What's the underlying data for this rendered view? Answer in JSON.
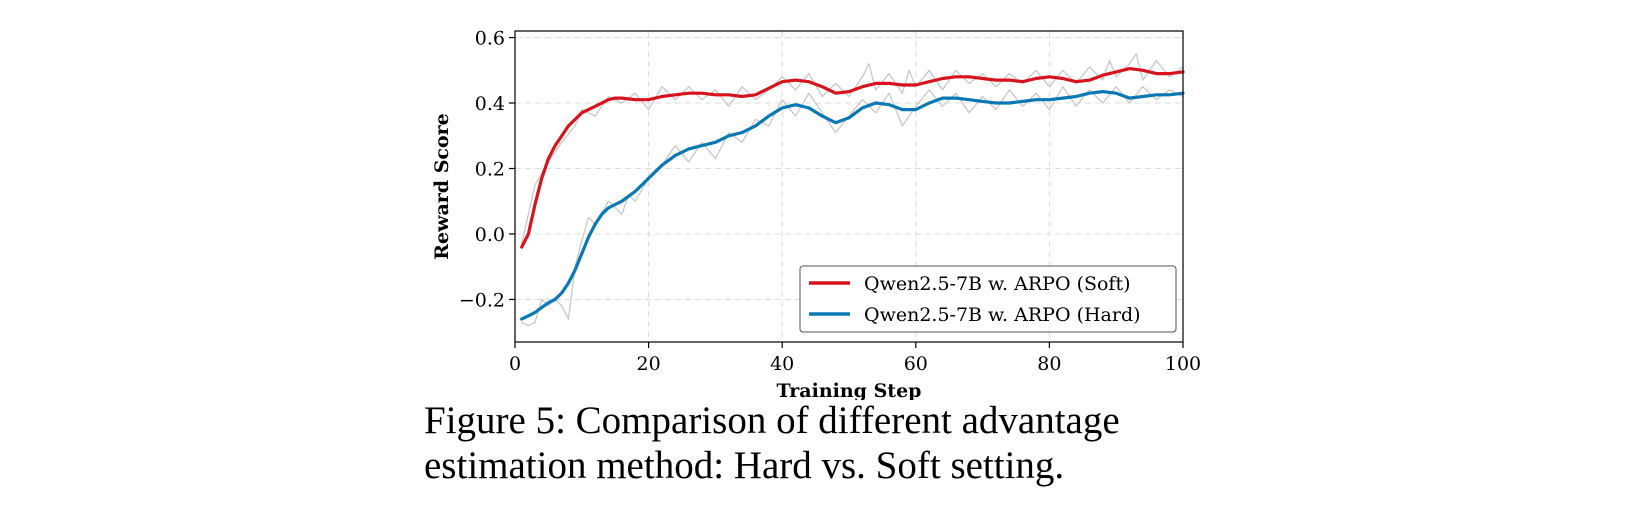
{
  "caption": "Figure 5: Comparison of different advantage estimation method: Hard vs. Soft setting.",
  "chart_data": {
    "type": "line",
    "title": "",
    "xlabel": "Training Step",
    "ylabel": "Reward Score",
    "xlim": [
      0,
      100
    ],
    "ylim": [
      -0.33,
      0.62
    ],
    "xticks": [
      0,
      20,
      40,
      60,
      80,
      100
    ],
    "xtick_labels": [
      "0",
      "20",
      "40",
      "60",
      "80",
      "100"
    ],
    "yticks": [
      -0.2,
      0.0,
      0.2,
      0.4,
      0.6
    ],
    "ytick_labels": [
      "−0.2",
      "0.0",
      "0.2",
      "0.4",
      "0.6"
    ],
    "grid": true,
    "legend_position": "lower-right",
    "series": [
      {
        "name": "Qwen2.5-7B w. ARPO (Soft)",
        "color": "#d7141e",
        "x": [
          1,
          2,
          3,
          4,
          5,
          6,
          7,
          8,
          9,
          10,
          12,
          14,
          15,
          16,
          18,
          20,
          22,
          24,
          26,
          28,
          30,
          32,
          34,
          36,
          38,
          40,
          42,
          44,
          46,
          48,
          50,
          52,
          54,
          56,
          58,
          60,
          62,
          64,
          66,
          68,
          70,
          72,
          74,
          76,
          78,
          80,
          82,
          84,
          86,
          88,
          90,
          92,
          94,
          96,
          98,
          100
        ],
        "y": [
          -0.04,
          0.0,
          0.09,
          0.17,
          0.23,
          0.27,
          0.3,
          0.33,
          0.35,
          0.37,
          0.39,
          0.41,
          0.415,
          0.415,
          0.41,
          0.41,
          0.42,
          0.425,
          0.43,
          0.43,
          0.425,
          0.425,
          0.42,
          0.425,
          0.445,
          0.465,
          0.47,
          0.465,
          0.45,
          0.43,
          0.435,
          0.45,
          0.46,
          0.46,
          0.455,
          0.455,
          0.465,
          0.475,
          0.48,
          0.48,
          0.475,
          0.47,
          0.47,
          0.465,
          0.475,
          0.48,
          0.475,
          0.465,
          0.47,
          0.485,
          0.495,
          0.505,
          0.5,
          0.49,
          0.49,
          0.495
        ]
      },
      {
        "name": "Qwen2.5-7B w. ARPO (Hard)",
        "color": "#0a78b4",
        "x": [
          1,
          2,
          3,
          4,
          5,
          6,
          7,
          8,
          9,
          10,
          11,
          12,
          13,
          14,
          15,
          16,
          18,
          20,
          22,
          24,
          26,
          28,
          30,
          32,
          34,
          36,
          38,
          40,
          42,
          44,
          46,
          48,
          50,
          52,
          54,
          56,
          58,
          60,
          62,
          64,
          66,
          68,
          70,
          72,
          74,
          76,
          78,
          80,
          82,
          84,
          86,
          88,
          90,
          92,
          94,
          96,
          98,
          100
        ],
        "y": [
          -0.26,
          -0.25,
          -0.24,
          -0.225,
          -0.21,
          -0.2,
          -0.18,
          -0.15,
          -0.11,
          -0.06,
          -0.01,
          0.03,
          0.06,
          0.08,
          0.09,
          0.1,
          0.13,
          0.17,
          0.21,
          0.24,
          0.26,
          0.27,
          0.28,
          0.3,
          0.31,
          0.33,
          0.36,
          0.385,
          0.395,
          0.385,
          0.36,
          0.34,
          0.355,
          0.385,
          0.4,
          0.395,
          0.38,
          0.38,
          0.4,
          0.415,
          0.415,
          0.41,
          0.405,
          0.4,
          0.4,
          0.405,
          0.41,
          0.41,
          0.415,
          0.42,
          0.43,
          0.435,
          0.43,
          0.415,
          0.42,
          0.425,
          0.425,
          0.43
        ]
      },
      {
        "name": "",
        "color": "#c8c8c8",
        "x": [
          1,
          3,
          5,
          7,
          9,
          10,
          12,
          14,
          16,
          18,
          20,
          22,
          24,
          26,
          28,
          30,
          32,
          34,
          36,
          38,
          40,
          42,
          44,
          46,
          48,
          50,
          52,
          53,
          54,
          56,
          58,
          59,
          60,
          62,
          64,
          66,
          68,
          70,
          72,
          74,
          76,
          78,
          80,
          82,
          84,
          86,
          88,
          89,
          90,
          92,
          93,
          94,
          96,
          98,
          100
        ],
        "y": [
          -0.03,
          0.15,
          0.22,
          0.28,
          0.33,
          0.38,
          0.36,
          0.42,
          0.4,
          0.43,
          0.38,
          0.45,
          0.41,
          0.45,
          0.41,
          0.44,
          0.39,
          0.45,
          0.41,
          0.44,
          0.48,
          0.44,
          0.49,
          0.42,
          0.46,
          0.42,
          0.48,
          0.52,
          0.44,
          0.49,
          0.43,
          0.5,
          0.45,
          0.5,
          0.44,
          0.5,
          0.46,
          0.49,
          0.45,
          0.49,
          0.46,
          0.5,
          0.45,
          0.5,
          0.46,
          0.51,
          0.47,
          0.53,
          0.48,
          0.52,
          0.55,
          0.47,
          0.53,
          0.48,
          0.51
        ]
      },
      {
        "name": "",
        "color": "#c8c8c8",
        "x": [
          1,
          2,
          3,
          4,
          5,
          6,
          7,
          8,
          9,
          10,
          11,
          12,
          14,
          16,
          17,
          18,
          20,
          22,
          24,
          26,
          28,
          30,
          32,
          34,
          36,
          38,
          40,
          42,
          44,
          46,
          48,
          50,
          52,
          54,
          56,
          58,
          60,
          62,
          64,
          66,
          68,
          70,
          72,
          74,
          76,
          78,
          80,
          82,
          84,
          86,
          88,
          90,
          92,
          94,
          96,
          98,
          100
        ],
        "y": [
          -0.27,
          -0.28,
          -0.27,
          -0.2,
          -0.22,
          -0.2,
          -0.22,
          -0.26,
          -0.1,
          -0.02,
          0.05,
          0.03,
          0.1,
          0.06,
          0.12,
          0.1,
          0.17,
          0.21,
          0.27,
          0.22,
          0.28,
          0.23,
          0.31,
          0.28,
          0.35,
          0.33,
          0.41,
          0.36,
          0.43,
          0.37,
          0.31,
          0.36,
          0.41,
          0.37,
          0.43,
          0.33,
          0.39,
          0.44,
          0.39,
          0.43,
          0.37,
          0.42,
          0.38,
          0.44,
          0.39,
          0.43,
          0.38,
          0.45,
          0.39,
          0.44,
          0.4,
          0.45,
          0.4,
          0.45,
          0.41,
          0.44,
          0.42
        ]
      }
    ]
  }
}
